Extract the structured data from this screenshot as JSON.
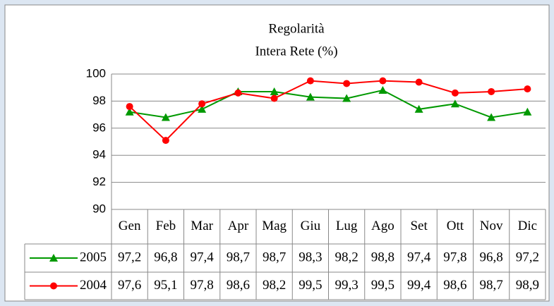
{
  "chart_data": {
    "type": "line",
    "title": "Regolarità",
    "subtitle": "Intera Rete (%)",
    "categories": [
      "Gen",
      "Feb",
      "Mar",
      "Apr",
      "Mag",
      "Giu",
      "Lug",
      "Ago",
      "Set",
      "Ott",
      "Nov",
      "Dic"
    ],
    "series": [
      {
        "name": "2005",
        "color": "#009900",
        "marker": "triangle",
        "values": [
          97.2,
          96.8,
          97.4,
          98.7,
          98.7,
          98.3,
          98.2,
          98.8,
          97.4,
          97.8,
          96.8,
          97.2
        ],
        "value_labels": [
          "97,2",
          "96,8",
          "97,4",
          "98,7",
          "98,7",
          "98,3",
          "98,2",
          "98,8",
          "97,4",
          "97,8",
          "96,8",
          "97,2"
        ]
      },
      {
        "name": "2004",
        "color": "#ff0000",
        "marker": "circle",
        "values": [
          97.6,
          95.1,
          97.8,
          98.6,
          98.2,
          99.5,
          99.3,
          99.5,
          99.4,
          98.6,
          98.7,
          98.9
        ],
        "value_labels": [
          "97,6",
          "95,1",
          "97,8",
          "98,6",
          "98,2",
          "99,5",
          "99,3",
          "99,5",
          "99,4",
          "98,6",
          "98,7",
          "98,9"
        ]
      }
    ],
    "ylim": [
      90,
      100
    ],
    "yticks": [
      90,
      92,
      94,
      96,
      98,
      100
    ],
    "grid": true
  }
}
